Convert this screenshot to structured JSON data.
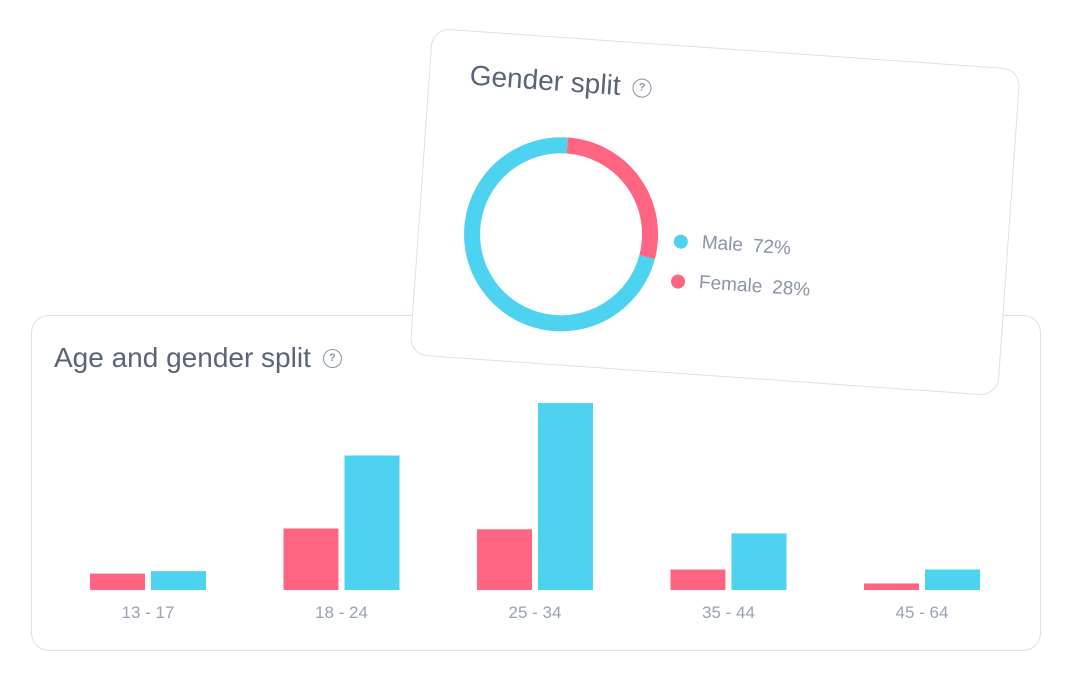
{
  "age_card": {
    "title": "Age and gender split",
    "help_icon": "?"
  },
  "gender_card": {
    "title": "Gender split",
    "help_icon": "?"
  },
  "colors": {
    "male": "#4dd2ef",
    "female": "#ff6480"
  },
  "chart_data": [
    {
      "type": "bar",
      "title": "Age and gender split",
      "categories": [
        "13 - 17",
        "18 - 24",
        "25 - 34",
        "35 - 44",
        "45 - 64"
      ],
      "series": [
        {
          "name": "Female",
          "values": [
            2,
            7.5,
            7.4,
            2.5,
            0.8
          ]
        },
        {
          "name": "Male",
          "values": [
            2.3,
            16.4,
            22.8,
            6.9,
            2.5
          ]
        }
      ],
      "ylim": [
        0,
        25
      ],
      "grid": false
    },
    {
      "type": "pie",
      "title": "Gender split",
      "labels": [
        "Male",
        "Female"
      ],
      "values": [
        72,
        28
      ],
      "value_labels": [
        "72%",
        "28%"
      ],
      "legend": "right"
    }
  ]
}
